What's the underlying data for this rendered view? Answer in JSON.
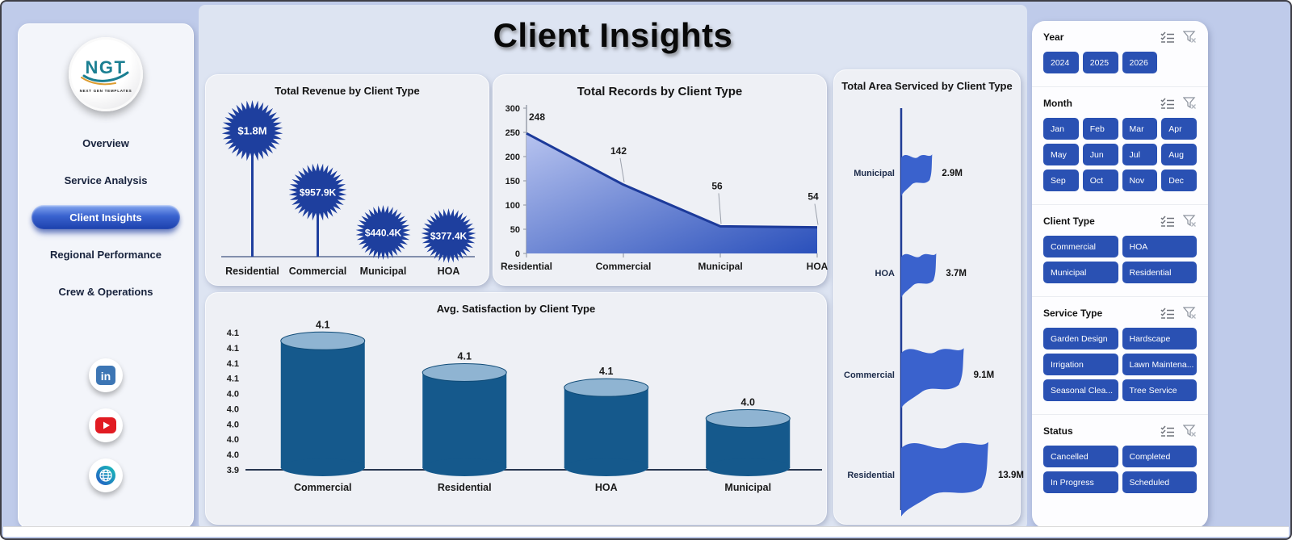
{
  "header": {
    "title": "Client Insights"
  },
  "sidebar": {
    "logo": {
      "text": "NGT",
      "subtext": "NEXT GEN TEMPLATES"
    },
    "nav": [
      {
        "label": "Overview",
        "active": false
      },
      {
        "label": "Service Analysis",
        "active": false
      },
      {
        "label": "Client Insights",
        "active": true
      },
      {
        "label": "Regional Performance",
        "active": false
      },
      {
        "label": "Crew & Operations",
        "active": false
      }
    ],
    "social": [
      "linkedin-icon",
      "youtube-icon",
      "website-globe-icon"
    ]
  },
  "colors": {
    "accent_button": "#2a51b3",
    "burst": "#1e3f9e",
    "area_light": "#b7c3ef",
    "area_dark": "#2a50bb",
    "area_line": "#1c3a9a",
    "flag": "#3a62cd",
    "pole": "#1f3c96",
    "cylinder": "#15598c",
    "cylinder_top": "#8fb4d2",
    "axis_text": "#1a1a1a"
  },
  "chart_data": [
    {
      "type": "lollipop-burst",
      "title": "Total Revenue by Client Type",
      "categories": [
        "Residential",
        "Commercial",
        "Municipal",
        "HOA"
      ],
      "values": [
        1800000,
        957900,
        440400,
        377400
      ],
      "labels": [
        "$1.8M",
        "$957.9K",
        "$440.4K",
        "$377.4K"
      ]
    },
    {
      "type": "area",
      "title": "Total Records by Client Type",
      "categories": [
        "Residential",
        "Commercial",
        "Municipal",
        "HOA"
      ],
      "values": [
        248,
        142,
        56,
        54
      ],
      "ylim": [
        0,
        300
      ],
      "yticks": [
        0,
        50,
        100,
        150,
        200,
        250,
        300
      ]
    },
    {
      "type": "flag-bar",
      "title": "Total Area Serviced by Client Type",
      "categories": [
        "Municipal",
        "HOA",
        "Commercial",
        "Residential"
      ],
      "values": [
        2900000,
        3700000,
        9100000,
        13900000
      ],
      "labels": [
        "2.9M",
        "3.7M",
        "9.1M",
        "13.9M"
      ]
    },
    {
      "type": "cylinder-bar",
      "title": "Avg. Satisfaction by Client Type",
      "categories": [
        "Commercial",
        "Residential",
        "HOA",
        "Municipal"
      ],
      "values": [
        4.1,
        4.1,
        4.1,
        4.0
      ],
      "values_est": [
        4.091,
        4.049,
        4.029,
        3.988
      ],
      "ylim": [
        3.92,
        4.102
      ],
      "ytick_labels": [
        "4.1",
        "4.1",
        "4.1",
        "4.1",
        "4.0",
        "4.0",
        "4.0",
        "4.0",
        "4.0",
        "3.9"
      ]
    }
  ],
  "filter_panel": {
    "sections": [
      {
        "title": "Year",
        "cols": 4,
        "options": [
          "2024",
          "2025",
          "2026"
        ]
      },
      {
        "title": "Month",
        "cols": 4,
        "options": [
          "Jan",
          "Feb",
          "Mar",
          "Apr",
          "May",
          "Jun",
          "Jul",
          "Aug",
          "Sep",
          "Oct",
          "Nov",
          "Dec"
        ]
      },
      {
        "title": "Client Type",
        "cols": 2,
        "options": [
          "Commercial",
          "HOA",
          "Municipal",
          "Residential"
        ]
      },
      {
        "title": "Service Type",
        "cols": 2,
        "options": [
          "Garden Design",
          "Hardscape",
          "Irrigation",
          "Lawn Maintena...",
          "Seasonal Clea...",
          "Tree Service"
        ]
      },
      {
        "title": "Status",
        "cols": 2,
        "options": [
          "Cancelled",
          "Completed",
          "In Progress",
          "Scheduled"
        ]
      }
    ],
    "header_icons": [
      "select-all-icon",
      "clear-filter-icon"
    ]
  }
}
